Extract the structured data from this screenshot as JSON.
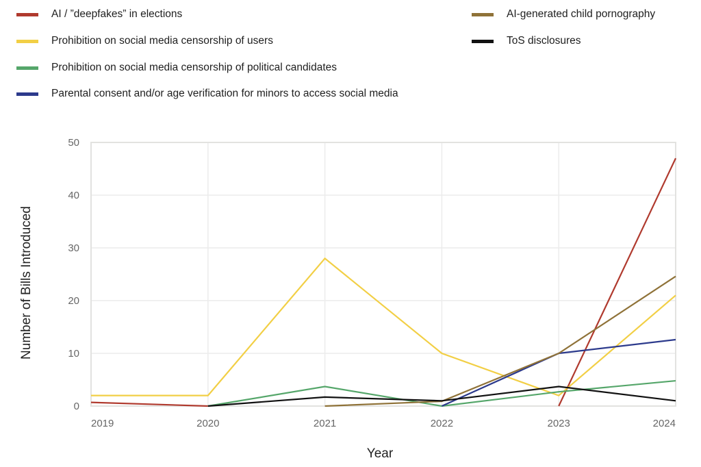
{
  "chart_data": {
    "type": "line",
    "title": "",
    "xlabel": "Year",
    "ylabel": "Number of Bills Introduced",
    "x": [
      2019,
      2020,
      2021,
      2022,
      2023,
      2024
    ],
    "x_tick_labels": [
      "2019",
      "2020",
      "2021",
      "2022",
      "2023",
      "2024"
    ],
    "ylim": [
      0,
      50
    ],
    "y_ticks": [
      0,
      10,
      20,
      30,
      40,
      50
    ],
    "y_tick_labels": [
      "0",
      "10",
      "20",
      "30",
      "40",
      "50"
    ],
    "grid": true,
    "legend_placement": "top",
    "series": [
      {
        "name": "AI / ”deepfakes” in elections",
        "color": "#b03a2e",
        "values": [
          0.7,
          0,
          null,
          null,
          0,
          47
        ]
      },
      {
        "name": "Prohibition on social media censorship of users",
        "color": "#f2cf45",
        "values": [
          2,
          2,
          28,
          10,
          2,
          21
        ]
      },
      {
        "name": "Prohibition on social media censorship of political candidates",
        "color": "#55a66a",
        "values": [
          null,
          0,
          3.7,
          0,
          2.7,
          4.8
        ]
      },
      {
        "name": "Parental consent and/or age verification for minors to access social media",
        "color": "#2c3a8c",
        "values": [
          null,
          null,
          null,
          0,
          10,
          12.6
        ]
      },
      {
        "name": "AI-generated child pornography",
        "color": "#8f7238",
        "values": [
          null,
          null,
          0,
          0.9,
          10,
          24.6
        ]
      },
      {
        "name": "ToS disclosures",
        "color": "#111111",
        "values": [
          null,
          0,
          1.7,
          1,
          3.7,
          1
        ]
      }
    ]
  }
}
